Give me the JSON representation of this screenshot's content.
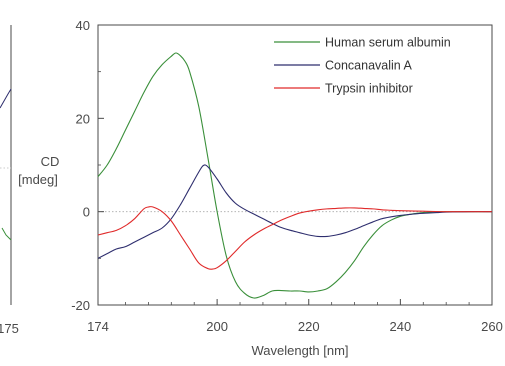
{
  "chart_data": {
    "type": "line",
    "xlabel": "Wavelength [nm]",
    "ylabel_line1": "CD",
    "ylabel_line2": "[mdeg]",
    "xlim": [
      174,
      260
    ],
    "ylim": [
      -20,
      40
    ],
    "x_ticks": [
      174,
      200,
      220,
      240,
      260
    ],
    "y_ticks": [
      -20,
      0,
      20,
      40
    ],
    "zero_line": true,
    "legend_position": "top-right",
    "left_panel_partial": {
      "x_tick_label": "175"
    },
    "series": [
      {
        "name": "Human serum albumin",
        "color": "#3a8f3a",
        "x": [
          174,
          176,
          178,
          180,
          182,
          184,
          186,
          188,
          190,
          191,
          192,
          193,
          194,
          196,
          198,
          200,
          202,
          204,
          206,
          208,
          210,
          212,
          214,
          216,
          218,
          220,
          222,
          224,
          226,
          228,
          230,
          232,
          234,
          236,
          238,
          240,
          242,
          244,
          246,
          248,
          250,
          255,
          260
        ],
        "y": [
          7.5,
          10,
          13.5,
          17.5,
          21.5,
          25.5,
          29,
          31.5,
          33.3,
          34,
          33.4,
          32.2,
          30,
          22.5,
          11.5,
          0,
          -9.5,
          -15,
          -17.5,
          -18.5,
          -18,
          -17,
          -16.9,
          -17,
          -17,
          -17.2,
          -17,
          -16.5,
          -15,
          -13,
          -10.5,
          -7.5,
          -5,
          -3,
          -1.8,
          -1,
          -0.6,
          -0.3,
          -0.1,
          0,
          0,
          0,
          0
        ]
      },
      {
        "name": "Concanavalin A",
        "color": "#2e2e6e",
        "x": [
          174,
          176,
          178,
          180,
          182,
          184,
          186,
          188,
          190,
          192,
          194,
          196,
          197,
          198,
          200,
          202,
          204,
          206,
          208,
          210,
          212,
          214,
          216,
          218,
          220,
          222,
          224,
          226,
          228,
          230,
          232,
          234,
          236,
          238,
          240,
          242,
          244,
          246,
          248,
          250,
          255,
          260
        ],
        "y": [
          -10,
          -9,
          -8,
          -7.5,
          -6.5,
          -5.5,
          -4.5,
          -3.5,
          -1.5,
          1.5,
          5,
          8.5,
          9.9,
          9.6,
          7,
          4,
          1.8,
          0.5,
          -0.5,
          -1.5,
          -2.5,
          -3.4,
          -4,
          -4.5,
          -5,
          -5.3,
          -5.3,
          -5,
          -4.5,
          -3.8,
          -3,
          -2.2,
          -1.5,
          -1.1,
          -0.8,
          -0.6,
          -0.4,
          -0.3,
          -0.2,
          -0.1,
          0,
          0
        ]
      },
      {
        "name": "Trypsin inhibitor",
        "color": "#e02a2a",
        "x": [
          174,
          176,
          178,
          180,
          182,
          184,
          185,
          186,
          188,
          190,
          192,
          194,
          196,
          198,
          199,
          200,
          202,
          204,
          206,
          208,
          210,
          212,
          214,
          216,
          218,
          220,
          222,
          224,
          226,
          228,
          230,
          232,
          234,
          236,
          238,
          240,
          245,
          250,
          255,
          260
        ],
        "y": [
          -5,
          -4.5,
          -4,
          -3,
          -1.5,
          0.6,
          1,
          1,
          0,
          -2,
          -5,
          -8,
          -11,
          -12.2,
          -12.3,
          -12,
          -10.5,
          -8.5,
          -6.5,
          -5,
          -3.8,
          -2.8,
          -1.8,
          -1,
          -0.3,
          0.1,
          0.4,
          0.6,
          0.7,
          0.8,
          0.8,
          0.7,
          0.6,
          0.4,
          0.3,
          0.2,
          0.1,
          0,
          0,
          0
        ]
      }
    ]
  }
}
